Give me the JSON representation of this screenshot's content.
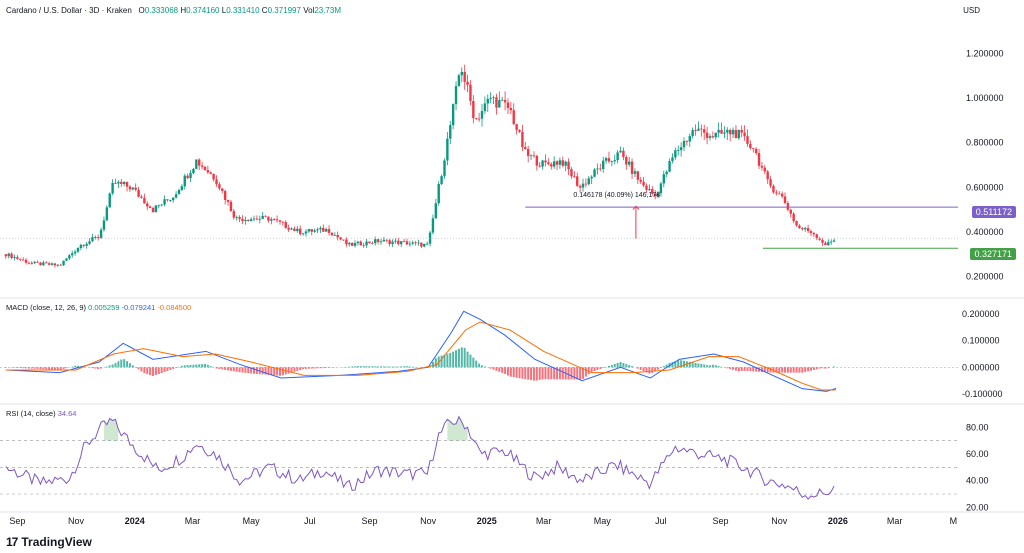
{
  "header": {
    "symbol": "Cardano / U.S. Dollar · 3D · Kraken",
    "o_label": "O",
    "o_value": "0.333068",
    "h_label": "H",
    "h_value": "0.374160",
    "l_label": "L",
    "l_value": "0.331410",
    "c_label": "C",
    "c_value": "0.371997",
    "vol_label": "Vol",
    "vol_value": "23.73M",
    "currency": "USD"
  },
  "macd_legend": {
    "label": "MACD (close, 12, 26, 9)",
    "hist": "0.005259",
    "macd": "-0.079241",
    "signal": "-0.084500"
  },
  "rsi_legend": {
    "label": "RSI (14, close)",
    "value": "34.64"
  },
  "annotation": {
    "measure": "0.146178 (40.09%) 146,178"
  },
  "price_tags": {
    "resistance": "0.511172",
    "current": "0.327171"
  },
  "brand": {
    "name": "TradingView",
    "mark": "17"
  },
  "colors": {
    "up": "#089981",
    "down": "#f23645",
    "macd": "#2962ff",
    "signal": "#ff6d00",
    "rsi": "#7e57c2",
    "resistance": "#7b61c7",
    "support": "#43a047"
  },
  "chart_data": [
    {
      "type": "candlestick",
      "title": "Cardano / U.S. Dollar · 3D · Kraken",
      "ylabel": "USD",
      "x_ticks": [
        "Sep",
        "Nov",
        "2024",
        "Mar",
        "May",
        "Jul",
        "Sep",
        "Nov",
        "2025",
        "Mar",
        "May",
        "Jul",
        "Sep",
        "Nov",
        "2026",
        "Mar",
        "M"
      ],
      "y_ticks": [
        "1.200000",
        "1.000000",
        "0.800000",
        "0.600000",
        "0.400000",
        "0.200000"
      ],
      "ylim": [
        0.14,
        1.34
      ],
      "close_path": [
        {
          "x": "2023-08-20",
          "y": 0.3
        },
        {
          "x": "2023-09-15",
          "y": 0.26
        },
        {
          "x": "2023-10-15",
          "y": 0.25
        },
        {
          "x": "2023-11-05",
          "y": 0.34
        },
        {
          "x": "2023-11-25",
          "y": 0.38
        },
        {
          "x": "2023-12-10",
          "y": 0.62
        },
        {
          "x": "2023-12-28",
          "y": 0.6
        },
        {
          "x": "2024-01-20",
          "y": 0.5
        },
        {
          "x": "2024-02-10",
          "y": 0.56
        },
        {
          "x": "2024-03-05",
          "y": 0.72
        },
        {
          "x": "2024-03-25",
          "y": 0.64
        },
        {
          "x": "2024-04-15",
          "y": 0.46
        },
        {
          "x": "2024-05-20",
          "y": 0.46
        },
        {
          "x": "2024-06-20",
          "y": 0.4
        },
        {
          "x": "2024-07-20",
          "y": 0.41
        },
        {
          "x": "2024-08-10",
          "y": 0.34
        },
        {
          "x": "2024-09-10",
          "y": 0.36
        },
        {
          "x": "2024-10-10",
          "y": 0.35
        },
        {
          "x": "2024-11-01",
          "y": 0.34
        },
        {
          "x": "2024-11-12",
          "y": 0.6
        },
        {
          "x": "2024-11-25",
          "y": 0.9
        },
        {
          "x": "2024-12-05",
          "y": 1.15
        },
        {
          "x": "2024-12-20",
          "y": 0.9
        },
        {
          "x": "2025-01-05",
          "y": 1.0
        },
        {
          "x": "2025-01-25",
          "y": 0.95
        },
        {
          "x": "2025-02-10",
          "y": 0.75
        },
        {
          "x": "2025-03-01",
          "y": 0.7
        },
        {
          "x": "2025-03-20",
          "y": 0.72
        },
        {
          "x": "2025-04-08",
          "y": 0.6
        },
        {
          "x": "2025-05-01",
          "y": 0.7
        },
        {
          "x": "2025-05-20",
          "y": 0.75
        },
        {
          "x": "2025-06-10",
          "y": 0.62
        },
        {
          "x": "2025-06-25",
          "y": 0.56
        },
        {
          "x": "2025-07-15",
          "y": 0.75
        },
        {
          "x": "2025-08-05",
          "y": 0.86
        },
        {
          "x": "2025-08-25",
          "y": 0.83
        },
        {
          "x": "2025-09-15",
          "y": 0.85
        },
        {
          "x": "2025-10-05",
          "y": 0.78
        },
        {
          "x": "2025-10-20",
          "y": 0.62
        },
        {
          "x": "2025-11-05",
          "y": 0.55
        },
        {
          "x": "2025-11-20",
          "y": 0.42
        },
        {
          "x": "2025-12-05",
          "y": 0.4
        },
        {
          "x": "2025-12-20",
          "y": 0.34
        },
        {
          "x": "2025-12-30",
          "y": 0.372
        }
      ],
      "lines": [
        {
          "y": 0.511172,
          "x_start": "2025-02-10",
          "x_end": "2026-05-01"
        },
        {
          "y": 0.327171,
          "x_start": "2025-10-15",
          "x_end": "2026-05-01"
        }
      ]
    },
    {
      "type": "line",
      "title": "MACD (close, 12, 26, 9)",
      "y_ticks": [
        "0.200000",
        "0.100000",
        "0.000000",
        "-0.100000"
      ],
      "ylim": [
        -0.13,
        0.23
      ],
      "series": [
        {
          "name": "MACD",
          "values": [
            [
              "2023-08-20",
              -0.01
            ],
            [
              "2023-10-15",
              -0.02
            ],
            [
              "2023-11-25",
              0.02
            ],
            [
              "2023-12-20",
              0.09
            ],
            [
              "2024-01-20",
              0.03
            ],
            [
              "2024-03-15",
              0.06
            ],
            [
              "2024-04-20",
              0.01
            ],
            [
              "2024-06-01",
              -0.04
            ],
            [
              "2024-08-01",
              -0.03
            ],
            [
              "2024-10-01",
              -0.015
            ],
            [
              "2024-11-01",
              0.0
            ],
            [
              "2024-11-25",
              0.13
            ],
            [
              "2024-12-08",
              0.21
            ],
            [
              "2024-12-25",
              0.18
            ],
            [
              "2025-01-20",
              0.12
            ],
            [
              "2025-02-20",
              0.03
            ],
            [
              "2025-04-10",
              -0.05
            ],
            [
              "2025-05-20",
              0.0
            ],
            [
              "2025-06-20",
              -0.04
            ],
            [
              "2025-07-20",
              0.03
            ],
            [
              "2025-08-25",
              0.05
            ],
            [
              "2025-09-25",
              0.02
            ],
            [
              "2025-10-25",
              -0.03
            ],
            [
              "2025-11-25",
              -0.08
            ],
            [
              "2025-12-20",
              -0.09
            ],
            [
              "2025-12-30",
              -0.079241
            ]
          ]
        },
        {
          "name": "Signal",
          "values": [
            [
              "2023-08-20",
              -0.01
            ],
            [
              "2023-11-01",
              -0.01
            ],
            [
              "2023-12-10",
              0.05
            ],
            [
              "2024-01-10",
              0.07
            ],
            [
              "2024-02-20",
              0.04
            ],
            [
              "2024-03-25",
              0.05
            ],
            [
              "2024-05-01",
              0.02
            ],
            [
              "2024-06-25",
              -0.03
            ],
            [
              "2024-08-20",
              -0.03
            ],
            [
              "2024-10-10",
              -0.015
            ],
            [
              "2024-11-10",
              0.01
            ],
            [
              "2024-12-10",
              0.14
            ],
            [
              "2024-12-25",
              0.17
            ],
            [
              "2025-01-25",
              0.14
            ],
            [
              "2025-03-01",
              0.06
            ],
            [
              "2025-04-20",
              -0.02
            ],
            [
              "2025-06-01",
              -0.02
            ],
            [
              "2025-07-10",
              -0.01
            ],
            [
              "2025-08-20",
              0.04
            ],
            [
              "2025-09-20",
              0.04
            ],
            [
              "2025-10-25",
              -0.01
            ],
            [
              "2025-11-25",
              -0.06
            ],
            [
              "2025-12-15",
              -0.085
            ],
            [
              "2025-12-30",
              -0.0845
            ]
          ]
        }
      ]
    },
    {
      "type": "line",
      "title": "RSI (14, close)",
      "y_ticks": [
        "80.00",
        "60.00",
        "40.00",
        "20.00"
      ],
      "ylim": [
        18,
        90
      ],
      "series": [
        {
          "name": "RSI",
          "values": [
            [
              "2023-08-20",
              50
            ],
            [
              "2023-09-25",
              38
            ],
            [
              "2023-10-25",
              42
            ],
            [
              "2023-11-10",
              65
            ],
            [
              "2023-11-25",
              78
            ],
            [
              "2023-12-08",
              85
            ],
            [
              "2023-12-28",
              68
            ],
            [
              "2024-01-25",
              48
            ],
            [
              "2024-02-20",
              58
            ],
            [
              "2024-03-05",
              68
            ],
            [
              "2024-03-25",
              60
            ],
            [
              "2024-04-20",
              40
            ],
            [
              "2024-05-20",
              50
            ],
            [
              "2024-06-20",
              40
            ],
            [
              "2024-07-15",
              48
            ],
            [
              "2024-08-10",
              35
            ],
            [
              "2024-09-10",
              48
            ],
            [
              "2024-10-10",
              45
            ],
            [
              "2024-11-01",
              45
            ],
            [
              "2024-11-10",
              72
            ],
            [
              "2024-11-25",
              85
            ],
            [
              "2024-12-10",
              83
            ],
            [
              "2024-12-25",
              60
            ],
            [
              "2025-01-20",
              62
            ],
            [
              "2025-02-20",
              42
            ],
            [
              "2025-03-15",
              50
            ],
            [
              "2025-04-10",
              40
            ],
            [
              "2025-05-15",
              52
            ],
            [
              "2025-06-20",
              38
            ],
            [
              "2025-07-15",
              65
            ],
            [
              "2025-08-10",
              60
            ],
            [
              "2025-09-05",
              56
            ],
            [
              "2025-09-25",
              50
            ],
            [
              "2025-10-20",
              40
            ],
            [
              "2025-11-10",
              36
            ],
            [
              "2025-11-25",
              30
            ],
            [
              "2025-12-15",
              30
            ],
            [
              "2025-12-30",
              34.64
            ]
          ]
        }
      ],
      "bands": [
        30,
        50,
        70
      ]
    }
  ]
}
